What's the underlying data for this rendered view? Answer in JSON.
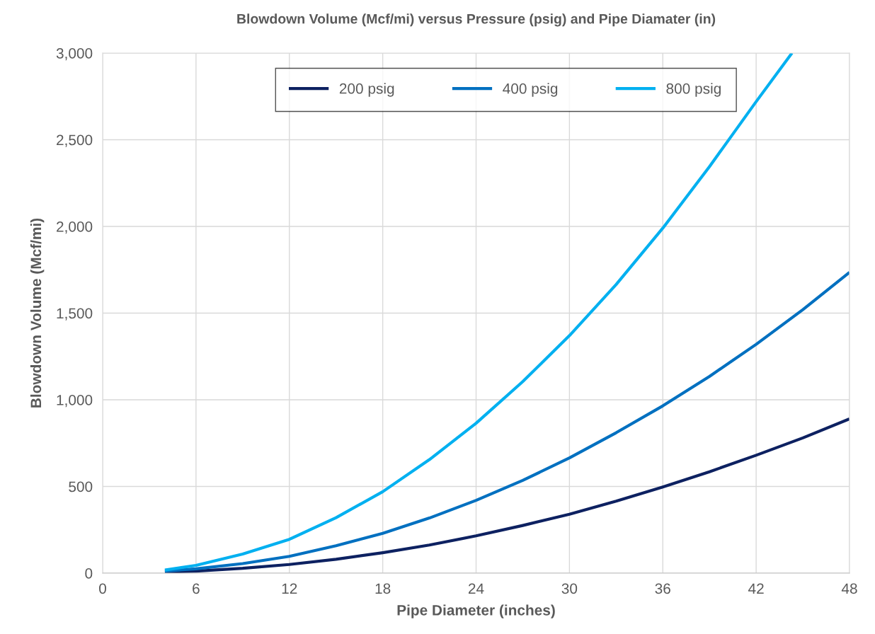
{
  "chart_data": {
    "type": "line",
    "title": "Blowdown Volume (Mcf/mi) versus Pressure (psig) and Pipe Diamater (in)",
    "xlabel": "Pipe Diameter (inches)",
    "ylabel": "Blowdown Volume (Mcf/mi)",
    "series": [
      {
        "name": "200 psig",
        "color": "#0d2161",
        "x": [
          4,
          6,
          9,
          12,
          15,
          18,
          21,
          24,
          27,
          30,
          33,
          36,
          39,
          42,
          45,
          48
        ],
        "values": [
          5,
          12,
          28,
          50,
          80,
          118,
          162,
          215,
          275,
          340,
          415,
          497,
          585,
          680,
          780,
          890
        ]
      },
      {
        "name": "400 psig",
        "color": "#0070c0",
        "x": [
          4,
          6,
          9,
          12,
          15,
          18,
          21,
          24,
          27,
          30,
          33,
          36,
          39,
          42,
          45,
          48
        ],
        "values": [
          12,
          25,
          55,
          97,
          158,
          230,
          318,
          420,
          535,
          665,
          810,
          965,
          1135,
          1320,
          1520,
          1735
        ]
      },
      {
        "name": "800 psig",
        "color": "#00b0f0",
        "x": [
          4,
          6,
          9,
          12,
          15,
          18,
          21,
          24,
          27,
          30,
          33,
          36,
          39,
          42,
          44.3
        ],
        "values": [
          18,
          45,
          110,
          195,
          320,
          470,
          655,
          865,
          1105,
          1370,
          1665,
          1990,
          2345,
          2720,
          3000
        ]
      }
    ],
    "xlim": [
      0,
      48
    ],
    "xticks": [
      0,
      6,
      12,
      18,
      24,
      30,
      36,
      42,
      48
    ],
    "ylim": [
      0,
      3000
    ],
    "yticks": [
      {
        "value": 0,
        "label": "0"
      },
      {
        "value": 500,
        "label": "500"
      },
      {
        "value": 1000,
        "label": "1,000"
      },
      {
        "value": 1500,
        "label": "1,500"
      },
      {
        "value": 2000,
        "label": "2,000"
      },
      {
        "value": 2500,
        "label": "2,500"
      },
      {
        "value": 3000,
        "label": "3,000"
      }
    ],
    "grid": true,
    "legend": "top",
    "marker": "none",
    "line_style": "solid"
  }
}
